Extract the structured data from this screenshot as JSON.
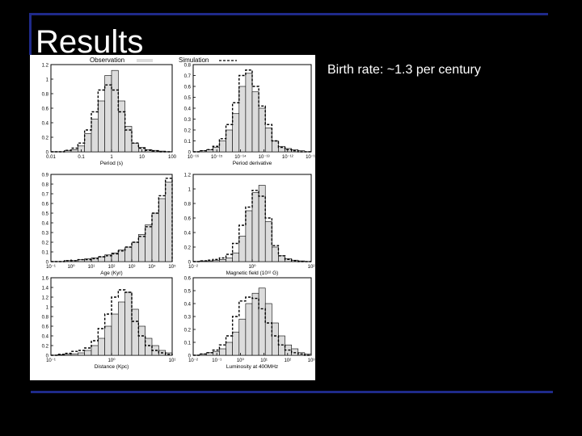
{
  "slide": {
    "title": "Results",
    "bullet": "Birth rate: ~1.3 per century"
  },
  "legend": {
    "observation_label": "Observation",
    "simulation_label": "Simulation"
  },
  "colors": {
    "background": "#000000",
    "accent_rule": "#1f2a8a",
    "observation_fill": "#dcdcdc",
    "simulation_line": "#000000"
  },
  "chart_data": [
    {
      "type": "bar",
      "xlabel": "Period (s)",
      "ylabel": "",
      "ylim": [
        0,
        1.2
      ],
      "yticks": [
        "0",
        "0.2",
        "0.4",
        "0.6",
        "0.8",
        "1",
        "1.2"
      ],
      "xticks": [
        "0.01",
        "0.1",
        "1",
        "10",
        "100"
      ],
      "series": [
        {
          "name": "Observation",
          "values": [
            0,
            0,
            0.02,
            0.03,
            0.08,
            0.25,
            0.45,
            0.7,
            1.05,
            1.12,
            0.7,
            0.35,
            0.12,
            0.06,
            0.03,
            0.02,
            0.01,
            0
          ]
        },
        {
          "name": "Simulation",
          "values": [
            0,
            0,
            0.02,
            0.05,
            0.12,
            0.3,
            0.55,
            0.85,
            0.92,
            0.85,
            0.55,
            0.3,
            0.12,
            0.05,
            0.02,
            0.01,
            0,
            0
          ]
        }
      ]
    },
    {
      "type": "bar",
      "xlabel": "Period derivative",
      "ylabel": "",
      "ylim": [
        0,
        0.8
      ],
      "yticks": [
        "0",
        "0.1",
        "0.2",
        "0.3",
        "0.4",
        "0.5",
        "0.6",
        "0.7",
        "0.8"
      ],
      "xticks": [
        "10⁻¹⁶",
        "10⁻¹⁵",
        "10⁻¹⁴",
        "10⁻¹³",
        "10⁻¹²",
        "10⁻¹¹"
      ],
      "series": [
        {
          "name": "Observation",
          "values": [
            0,
            0.01,
            0.02,
            0.04,
            0.1,
            0.2,
            0.35,
            0.6,
            0.72,
            0.55,
            0.4,
            0.22,
            0.1,
            0.05,
            0.03,
            0.02,
            0.01,
            0
          ]
        },
        {
          "name": "Simulation",
          "values": [
            0,
            0.01,
            0.02,
            0.05,
            0.12,
            0.25,
            0.45,
            0.7,
            0.75,
            0.6,
            0.42,
            0.25,
            0.1,
            0.04,
            0.02,
            0.01,
            0,
            0
          ]
        }
      ]
    },
    {
      "type": "bar",
      "xlabel": "Age (Kyr)",
      "ylabel": "",
      "ylim": [
        0,
        0.9
      ],
      "yticks": [
        "0",
        "0.1",
        "0.2",
        "0.3",
        "0.4",
        "0.5",
        "0.6",
        "0.7",
        "0.8",
        "0.9"
      ],
      "xticks": [
        "10⁻¹",
        "10⁰",
        "10¹",
        "10²",
        "10³",
        "10⁴",
        "10⁵"
      ],
      "series": [
        {
          "name": "Observation",
          "values": [
            0,
            0,
            0.01,
            0.01,
            0.02,
            0.03,
            0.04,
            0.05,
            0.07,
            0.09,
            0.12,
            0.15,
            0.2,
            0.28,
            0.38,
            0.5,
            0.65,
            0.82
          ]
        },
        {
          "name": "Simulation",
          "values": [
            0,
            0,
            0.01,
            0.01,
            0.02,
            0.02,
            0.03,
            0.05,
            0.06,
            0.08,
            0.11,
            0.15,
            0.2,
            0.26,
            0.36,
            0.5,
            0.68,
            0.86
          ]
        }
      ]
    },
    {
      "type": "bar",
      "xlabel": "Magnetic field (10¹² G)",
      "ylabel": "",
      "ylim": [
        0,
        1.2
      ],
      "yticks": [
        "0",
        "0.2",
        "0.4",
        "0.6",
        "0.8",
        "1",
        "1.2"
      ],
      "xticks": [
        "10⁻²",
        "10⁰",
        "10²"
      ],
      "series": [
        {
          "name": "Observation",
          "values": [
            0,
            0.01,
            0.01,
            0.02,
            0.03,
            0.05,
            0.12,
            0.35,
            0.7,
            0.95,
            1.05,
            0.55,
            0.2,
            0.08,
            0.04,
            0.02,
            0.01,
            0
          ]
        },
        {
          "name": "Simulation",
          "values": [
            0,
            0.01,
            0.02,
            0.03,
            0.05,
            0.1,
            0.25,
            0.5,
            0.75,
            0.98,
            0.9,
            0.6,
            0.22,
            0.08,
            0.03,
            0.01,
            0,
            0
          ]
        }
      ]
    },
    {
      "type": "bar",
      "xlabel": "Distance (Kpc)",
      "ylabel": "",
      "ylim": [
        0,
        1.6
      ],
      "yticks": [
        "0",
        "0.2",
        "0.4",
        "0.6",
        "0.8",
        "1",
        "1.2",
        "1.4",
        "1.6"
      ],
      "xticks": [
        "10⁻¹",
        "10⁰",
        "10¹"
      ],
      "series": [
        {
          "name": "Observation",
          "values": [
            0,
            0.01,
            0.02,
            0.03,
            0.05,
            0.1,
            0.2,
            0.35,
            0.6,
            0.85,
            1.1,
            1.3,
            0.95,
            0.6,
            0.35,
            0.2,
            0.1,
            0.05
          ]
        },
        {
          "name": "Simulation",
          "values": [
            0,
            0.02,
            0.04,
            0.08,
            0.1,
            0.15,
            0.3,
            0.55,
            0.85,
            1.2,
            1.35,
            1.3,
            0.7,
            0.4,
            0.2,
            0.1,
            0.05,
            0.02
          ]
        }
      ]
    },
    {
      "type": "bar",
      "xlabel": "Luminosity at 400MHz",
      "ylabel": "",
      "ylim": [
        0,
        0.6
      ],
      "yticks": [
        "0",
        "0.1",
        "0.2",
        "0.3",
        "0.4",
        "0.5",
        "0.6"
      ],
      "xticks": [
        "10⁻²",
        "10⁻¹",
        "10⁰",
        "10¹",
        "10²",
        "10³"
      ],
      "series": [
        {
          "name": "Observation",
          "values": [
            0,
            0.01,
            0.02,
            0.03,
            0.05,
            0.1,
            0.18,
            0.28,
            0.4,
            0.48,
            0.52,
            0.4,
            0.25,
            0.15,
            0.08,
            0.05,
            0.02,
            0.01
          ]
        },
        {
          "name": "Simulation",
          "values": [
            0,
            0.01,
            0.02,
            0.04,
            0.08,
            0.15,
            0.3,
            0.42,
            0.45,
            0.44,
            0.36,
            0.25,
            0.15,
            0.08,
            0.04,
            0.02,
            0.01,
            0
          ]
        }
      ]
    }
  ]
}
